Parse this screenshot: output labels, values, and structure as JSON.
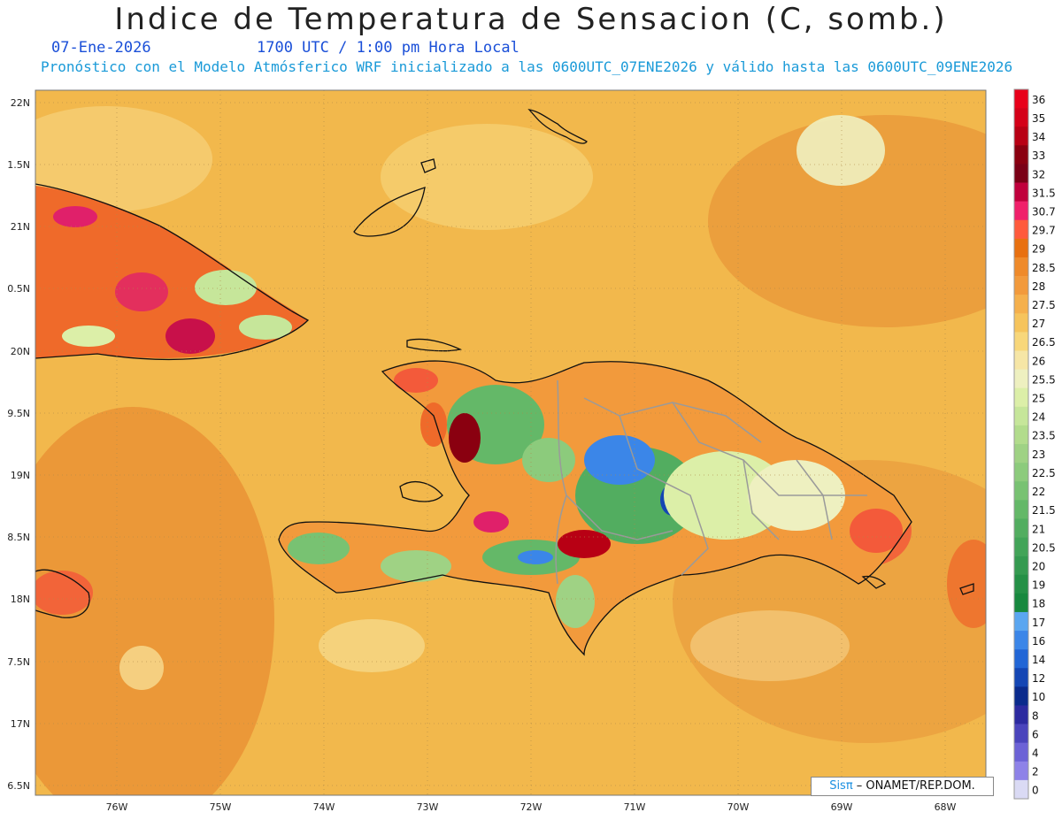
{
  "header": {
    "title": "Indice de Temperatura de Sensacion (C, somb.)",
    "date": "07-Ene-2026",
    "time": "1700 UTC / 1:00 pm Hora Local",
    "model_info": "Pronóstico con el Modelo Atmósferico WRF inicializado a las 0600UTC_07ENE2026 y válido hasta las  0600UTC_09ENE2026"
  },
  "map": {
    "lat_labels": [
      "22N",
      "1.5N",
      "21N",
      "0.5N",
      "20N",
      "9.5N",
      "19N",
      "8.5N",
      "18N",
      "7.5N",
      "17N",
      "6.5N"
    ],
    "lon_labels": [
      "76W",
      "75W",
      "74W",
      "73W",
      "72W",
      "71W",
      "70W",
      "69W",
      "68W"
    ],
    "background_color": "#f2b84c",
    "regions": [
      "Cuba (oriente)",
      "Haití",
      "República Dominicana",
      "Islas Turcas y Caicos",
      "Bahamas (sur)",
      "Jamaica (este)",
      "Puerto Rico (oeste)"
    ]
  },
  "colorbar": {
    "labels": [
      "36",
      "35",
      "34",
      "33",
      "32",
      "31.5",
      "30.7",
      "29.7",
      "29",
      "28.5",
      "28",
      "27.5",
      "27",
      "26.5",
      "26",
      "25.5",
      "25",
      "24",
      "23.5",
      "23",
      "22.5",
      "22",
      "21.5",
      "21",
      "20.5",
      "20",
      "19",
      "18",
      "17",
      "16",
      "14",
      "12",
      "10",
      "8",
      "6",
      "4",
      "2",
      "0"
    ],
    "colors": [
      "#e8001a",
      "#d40018",
      "#b80014",
      "#8a0010",
      "#7a0016",
      "#c0003c",
      "#f0206a",
      "#ff5a3c",
      "#e87010",
      "#ef8a2a",
      "#f29a3c",
      "#f5b04c",
      "#f6c45c",
      "#f8d77a",
      "#f6e6a6",
      "#eef0c0",
      "#dcefa8",
      "#c6e69a",
      "#b2dc8c",
      "#9fd284",
      "#8ccb7c",
      "#78c272",
      "#64b868",
      "#52ad60",
      "#42a458",
      "#349a50",
      "#249046",
      "#17883e",
      "#5aa6f0",
      "#3b86e8",
      "#2266d6",
      "#1446b4",
      "#0a2a8c",
      "#2c2aa0",
      "#4a44bc",
      "#6c62d6",
      "#8e82e8",
      "#dadaf4"
    ]
  },
  "credit": {
    "brand": "Sis",
    "pi": "π",
    "text": " –  ONAMET/REP.DOM."
  }
}
